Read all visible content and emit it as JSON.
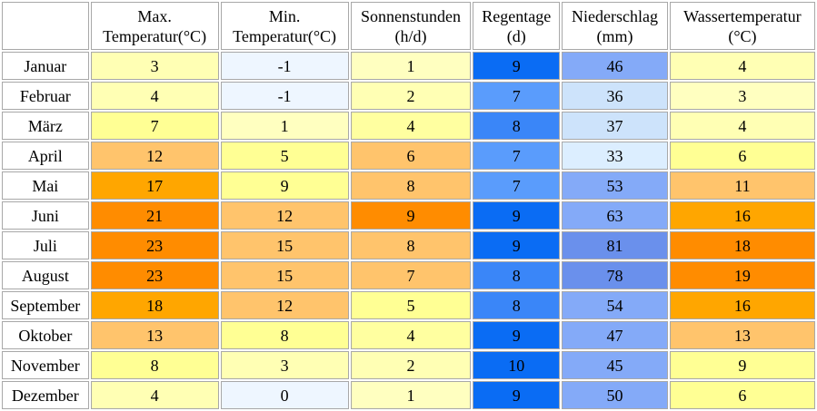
{
  "headers": [
    {
      "line1": "Max.",
      "line2": "Temperatur(°C)"
    },
    {
      "line1": "Min.",
      "line2": "Temperatur(°C)"
    },
    {
      "line1": "Sonnenstunden",
      "line2": "(h/d)"
    },
    {
      "line1": "Regentage",
      "line2": "(d)"
    },
    {
      "line1": "Niederschlag",
      "line2": "(mm)"
    },
    {
      "line1": "Wassertemperatur",
      "line2": "(°C)"
    }
  ],
  "rows": [
    {
      "month": "Januar",
      "values": [
        "3",
        "-1",
        "1",
        "9",
        "46",
        "4"
      ],
      "colors": [
        "#ffffb4",
        "#eef6ff",
        "#ffffc0",
        "#0a6cf4",
        "#84aaf8",
        "#ffffb4"
      ]
    },
    {
      "month": "Februar",
      "values": [
        "4",
        "-1",
        "2",
        "7",
        "36",
        "3"
      ],
      "colors": [
        "#ffffb4",
        "#eef6ff",
        "#ffffb4",
        "#5a9cfc",
        "#cde3fb",
        "#ffffc0"
      ]
    },
    {
      "month": "März",
      "values": [
        "7",
        "1",
        "4",
        "8",
        "37",
        "4"
      ],
      "colors": [
        "#ffff94",
        "#ffffc0",
        "#ffffa0",
        "#3a86f8",
        "#cde3fb",
        "#ffffb4"
      ]
    },
    {
      "month": "April",
      "values": [
        "12",
        "5",
        "6",
        "7",
        "33",
        "6"
      ],
      "colors": [
        "#ffc46c",
        "#ffff94",
        "#ffc46c",
        "#5a9cfc",
        "#dceeff",
        "#ffff94"
      ]
    },
    {
      "month": "Mai",
      "values": [
        "17",
        "9",
        "8",
        "7",
        "53",
        "11"
      ],
      "colors": [
        "#ffa600",
        "#ffff94",
        "#ffc46c",
        "#5a9cfc",
        "#84aaf8",
        "#ffc46c"
      ]
    },
    {
      "month": "Juni",
      "values": [
        "21",
        "12",
        "9",
        "9",
        "63",
        "16"
      ],
      "colors": [
        "#ff8c00",
        "#ffc46c",
        "#ff8c00",
        "#0a6cf4",
        "#84aaf8",
        "#ffa600"
      ]
    },
    {
      "month": "Juli",
      "values": [
        "23",
        "15",
        "8",
        "9",
        "81",
        "18"
      ],
      "colors": [
        "#ff8c00",
        "#ffc46c",
        "#ffc46c",
        "#0a6cf4",
        "#6a90ec",
        "#ff8c00"
      ]
    },
    {
      "month": "August",
      "values": [
        "23",
        "15",
        "7",
        "8",
        "78",
        "19"
      ],
      "colors": [
        "#ff8c00",
        "#ffc46c",
        "#ffc46c",
        "#3a86f8",
        "#6a90ec",
        "#ff8c00"
      ]
    },
    {
      "month": "September",
      "values": [
        "18",
        "12",
        "5",
        "8",
        "54",
        "16"
      ],
      "colors": [
        "#ffa600",
        "#ffc46c",
        "#ffff94",
        "#3a86f8",
        "#84aaf8",
        "#ffa600"
      ]
    },
    {
      "month": "Oktober",
      "values": [
        "13",
        "8",
        "4",
        "9",
        "47",
        "13"
      ],
      "colors": [
        "#ffc46c",
        "#ffff94",
        "#ffffa0",
        "#0a6cf4",
        "#84aaf8",
        "#ffc46c"
      ]
    },
    {
      "month": "November",
      "values": [
        "8",
        "3",
        "2",
        "10",
        "45",
        "9"
      ],
      "colors": [
        "#ffff94",
        "#ffffb4",
        "#ffffb4",
        "#0a6cf4",
        "#84aaf8",
        "#ffff94"
      ]
    },
    {
      "month": "Dezember",
      "values": [
        "4",
        "0",
        "1",
        "9",
        "50",
        "6"
      ],
      "colors": [
        "#ffffb4",
        "#eef6ff",
        "#ffffc0",
        "#0a6cf4",
        "#84aaf8",
        "#ffff94"
      ]
    }
  ]
}
